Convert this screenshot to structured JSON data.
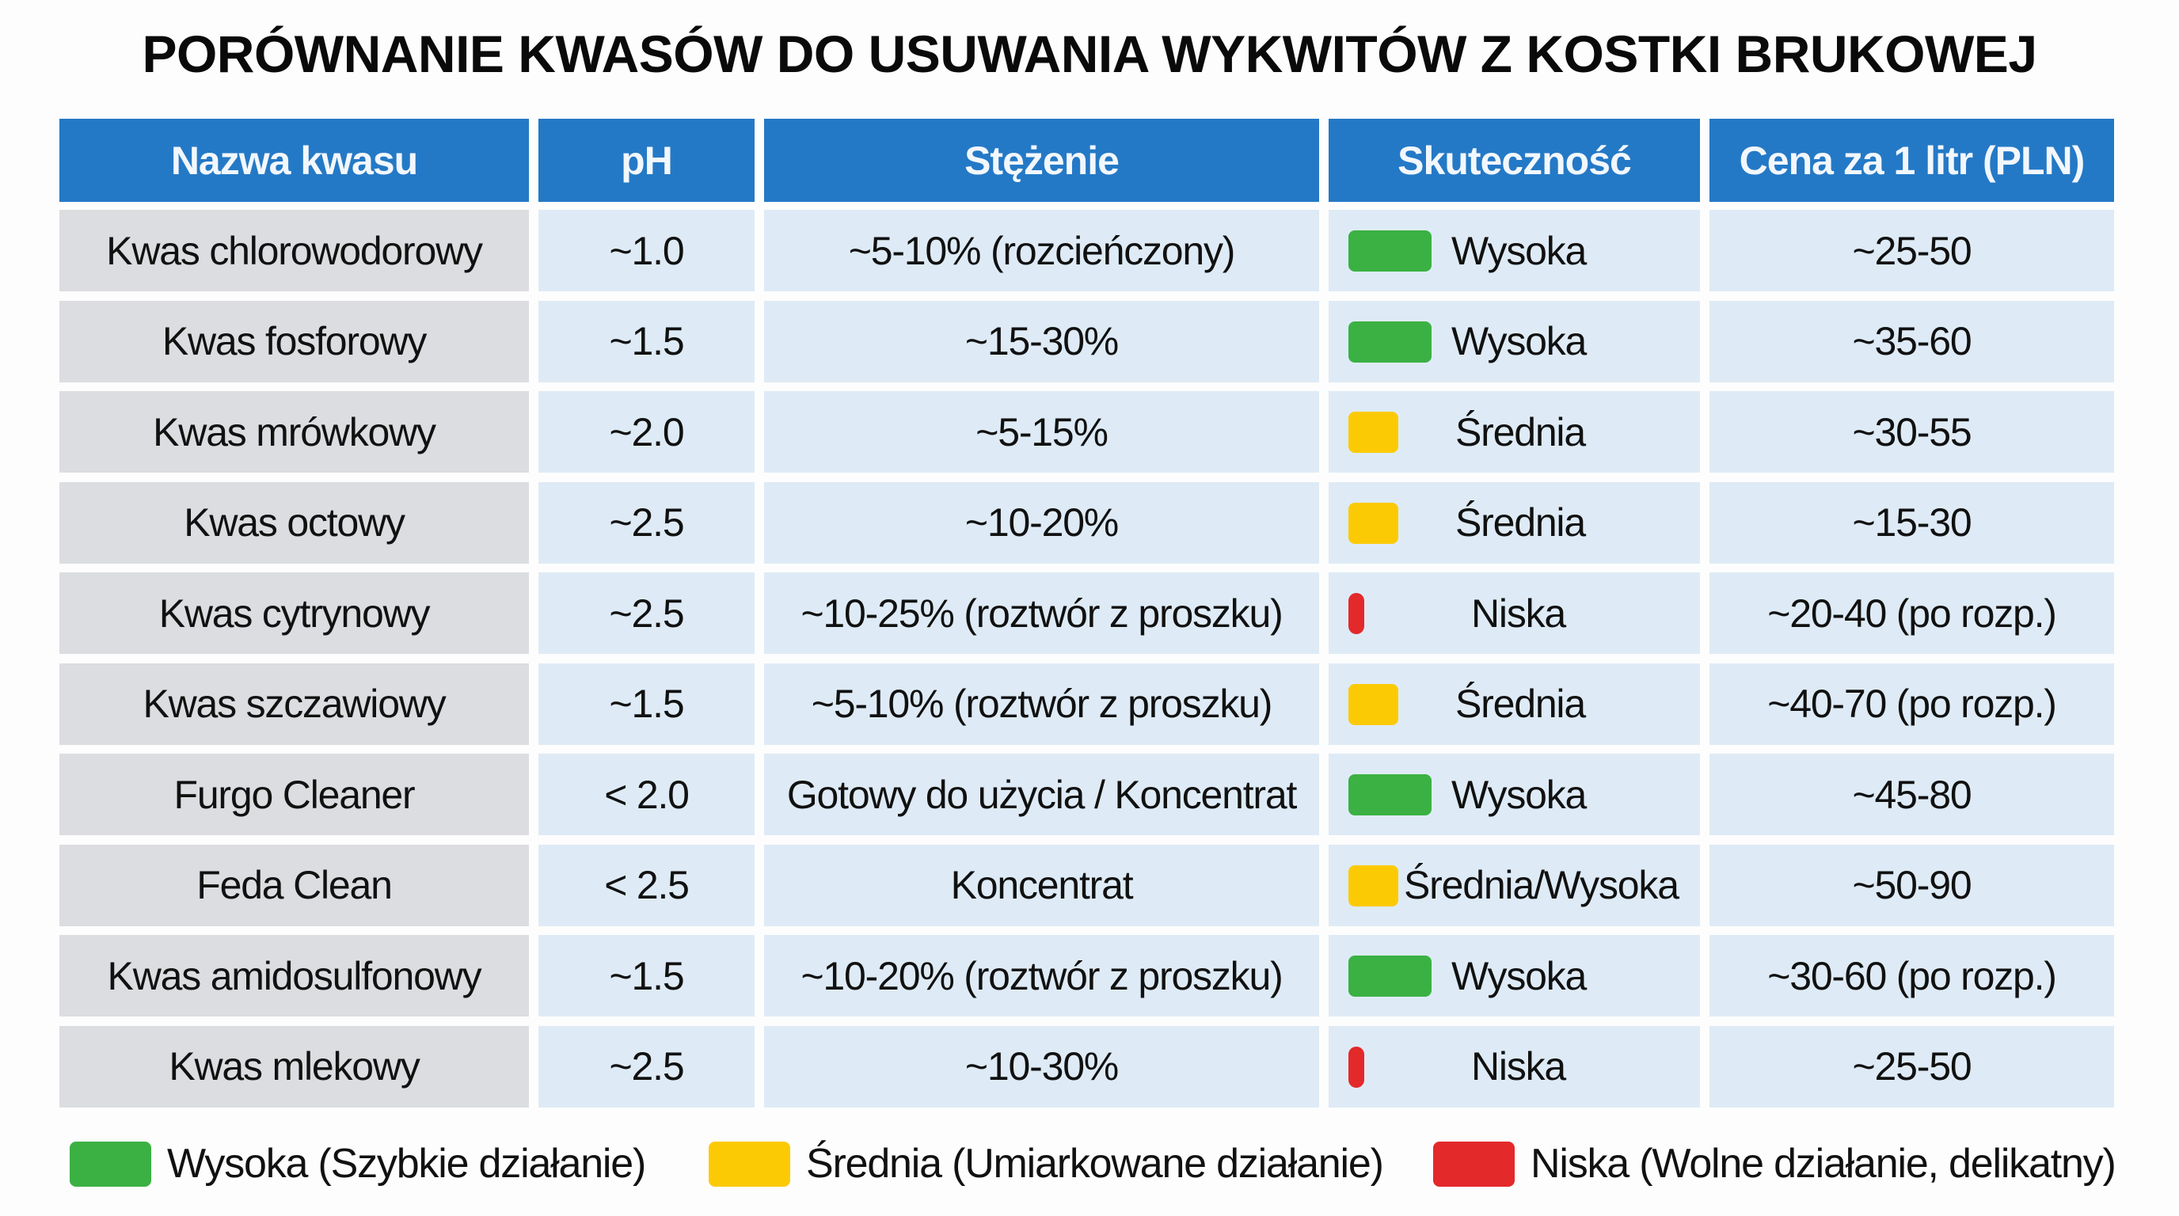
{
  "title": "PORÓWNANIE KWASÓW DO USUWANIA WYKWITÓW Z KOSTKI BRUKOWEJ",
  "colors": {
    "header": "#2479c6",
    "high": "#3bb143",
    "medium": "#fcca05",
    "low": "#e3292a"
  },
  "table": {
    "headers": [
      "Nazwa kwasu",
      "pH",
      "Stężenie",
      "Skuteczność",
      "Cena za 1 litr (PLN)"
    ],
    "rows": [
      {
        "name": "Kwas chlorowodorowy",
        "ph": "~1.0",
        "conc": "~5-10% (rozcieńczony)",
        "eff": "Wysoka",
        "level": "high",
        "price": "~25-50"
      },
      {
        "name": "Kwas fosforowy",
        "ph": "~1.5",
        "conc": "~15-30%",
        "eff": "Wysoka",
        "level": "high",
        "price": "~35-60"
      },
      {
        "name": "Kwas mrówkowy",
        "ph": "~2.0",
        "conc": "~5-15%",
        "eff": "Średnia",
        "level": "medium",
        "price": "~30-55"
      },
      {
        "name": "Kwas octowy",
        "ph": "~2.5",
        "conc": "~10-20%",
        "eff": "Średnia",
        "level": "medium",
        "price": "~15-30"
      },
      {
        "name": "Kwas cytrynowy",
        "ph": "~2.5",
        "conc": "~10-25% (roztwór z proszku)",
        "eff": "Niska",
        "level": "low",
        "price": "~20-40 (po rozp.)"
      },
      {
        "name": "Kwas szczawiowy",
        "ph": "~1.5",
        "conc": "~5-10% (roztwór z proszku)",
        "eff": "Średnia",
        "level": "medium",
        "price": "~40-70 (po rozp.)"
      },
      {
        "name": "Furgo Cleaner",
        "ph": "< 2.0",
        "conc": "Gotowy do użycia / Koncentrat",
        "eff": "Wysoka",
        "level": "high",
        "price": "~45-80"
      },
      {
        "name": "Feda Clean",
        "ph": "< 2.5",
        "conc": "Koncentrat",
        "eff": "Średnia/Wysoka",
        "level": "medium",
        "price": "~50-90"
      },
      {
        "name": "Kwas amidosulfonowy",
        "ph": "~1.5",
        "conc": "~10-20% (roztwór z proszku)",
        "eff": "Wysoka",
        "level": "high",
        "price": "~30-60 (po rozp.)"
      },
      {
        "name": "Kwas mlekowy",
        "ph": "~2.5",
        "conc": "~10-30%",
        "eff": "Niska",
        "level": "low",
        "price": "~25-50"
      }
    ]
  },
  "legend": [
    {
      "label": "Wysoka (Szybkie działanie)",
      "level": "high"
    },
    {
      "label": "Średnia (Umiarkowane działanie)",
      "level": "medium"
    },
    {
      "label": "Niska (Wolne działanie, delikatny)",
      "level": "low"
    }
  ]
}
